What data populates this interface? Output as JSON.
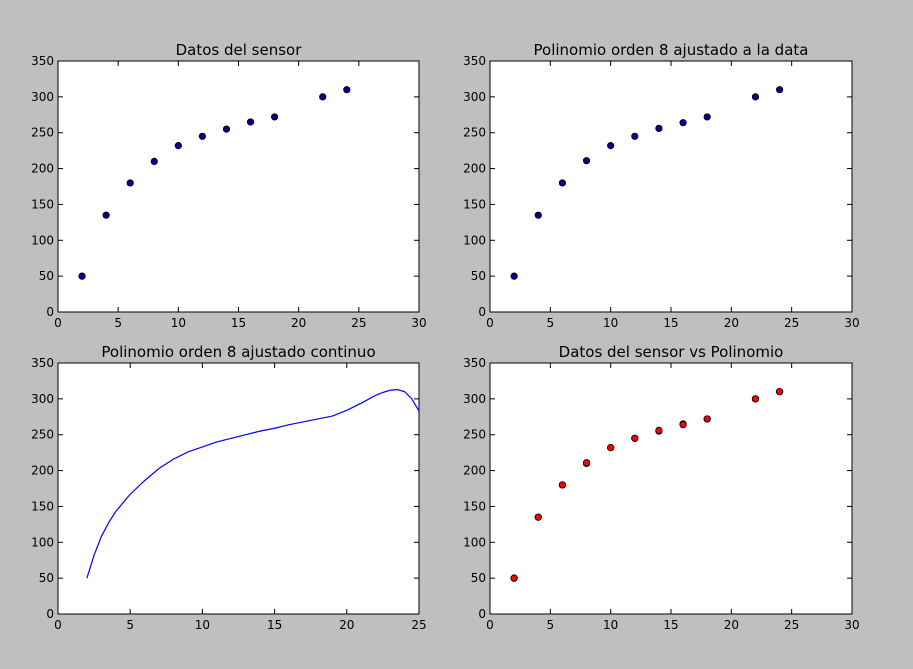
{
  "chart_data": [
    {
      "type": "scatter",
      "title": "Datos del sensor",
      "xlabel": "",
      "ylabel": "",
      "xlim": [
        0,
        30
      ],
      "ylim": [
        0,
        350
      ],
      "xticks": [
        0,
        5,
        10,
        15,
        20,
        25,
        30
      ],
      "yticks": [
        0,
        50,
        100,
        150,
        200,
        250,
        300,
        350
      ],
      "grid": false,
      "series": [
        {
          "x": [
            2,
            4,
            6,
            8,
            10,
            12,
            14,
            16,
            18,
            22,
            24
          ],
          "y": [
            50,
            135,
            180,
            210,
            232,
            245,
            255,
            265,
            272,
            300,
            310
          ],
          "color": "#00008b"
        }
      ]
    },
    {
      "type": "scatter",
      "title": "Polinomio orden 8 ajustado a la data",
      "xlabel": "",
      "ylabel": "",
      "xlim": [
        0,
        30
      ],
      "ylim": [
        0,
        350
      ],
      "xticks": [
        0,
        5,
        10,
        15,
        20,
        25,
        30
      ],
      "yticks": [
        0,
        50,
        100,
        150,
        200,
        250,
        300,
        350
      ],
      "grid": false,
      "series": [
        {
          "x": [
            2,
            4,
            6,
            8,
            10,
            12,
            14,
            16,
            18,
            22,
            24
          ],
          "y": [
            50,
            135,
            180,
            211,
            232,
            245,
            256,
            264,
            272,
            300,
            310
          ],
          "color": "#00008b"
        }
      ]
    },
    {
      "type": "line",
      "title": "Polinomio orden 8 ajustado continuo",
      "xlabel": "",
      "ylabel": "",
      "xlim": [
        0,
        25
      ],
      "ylim": [
        0,
        350
      ],
      "xticks": [
        0,
        5,
        10,
        15,
        20,
        25
      ],
      "yticks": [
        0,
        50,
        100,
        150,
        200,
        250,
        300,
        350
      ],
      "grid": false,
      "series": [
        {
          "x": [
            2,
            2.5,
            3,
            3.5,
            4,
            5,
            6,
            7,
            8,
            9,
            10,
            11,
            12,
            13,
            14,
            15,
            16,
            17,
            18,
            19,
            20,
            21,
            22,
            22.5,
            23,
            23.5,
            24,
            24.5,
            25
          ],
          "y": [
            50,
            82,
            108,
            127,
            143,
            167,
            186,
            203,
            216,
            226,
            233,
            240,
            245,
            250,
            255,
            259,
            264,
            268,
            272,
            276,
            284,
            294,
            305,
            309,
            312,
            313,
            310,
            300,
            283
          ],
          "color": "#0000ff"
        }
      ]
    },
    {
      "type": "scatter",
      "title": "Datos del sensor vs Polinomio",
      "xlabel": "",
      "ylabel": "",
      "xlim": [
        0,
        30
      ],
      "ylim": [
        0,
        350
      ],
      "xticks": [
        0,
        5,
        10,
        15,
        20,
        25,
        30
      ],
      "yticks": [
        0,
        50,
        100,
        150,
        200,
        250,
        300,
        350
      ],
      "grid": false,
      "series": [
        {
          "x": [
            2,
            4,
            6,
            8,
            10,
            12,
            14,
            16,
            18,
            22,
            24
          ],
          "y": [
            50,
            135,
            180,
            210,
            232,
            245,
            255,
            265,
            272,
            300,
            310
          ],
          "color": "#00008b"
        },
        {
          "x": [
            2,
            4,
            6,
            8,
            10,
            12,
            14,
            16,
            18,
            22,
            24
          ],
          "y": [
            50,
            135,
            180,
            211,
            232,
            245,
            256,
            264,
            272,
            300,
            310
          ],
          "color": "#ff0000"
        }
      ]
    }
  ]
}
